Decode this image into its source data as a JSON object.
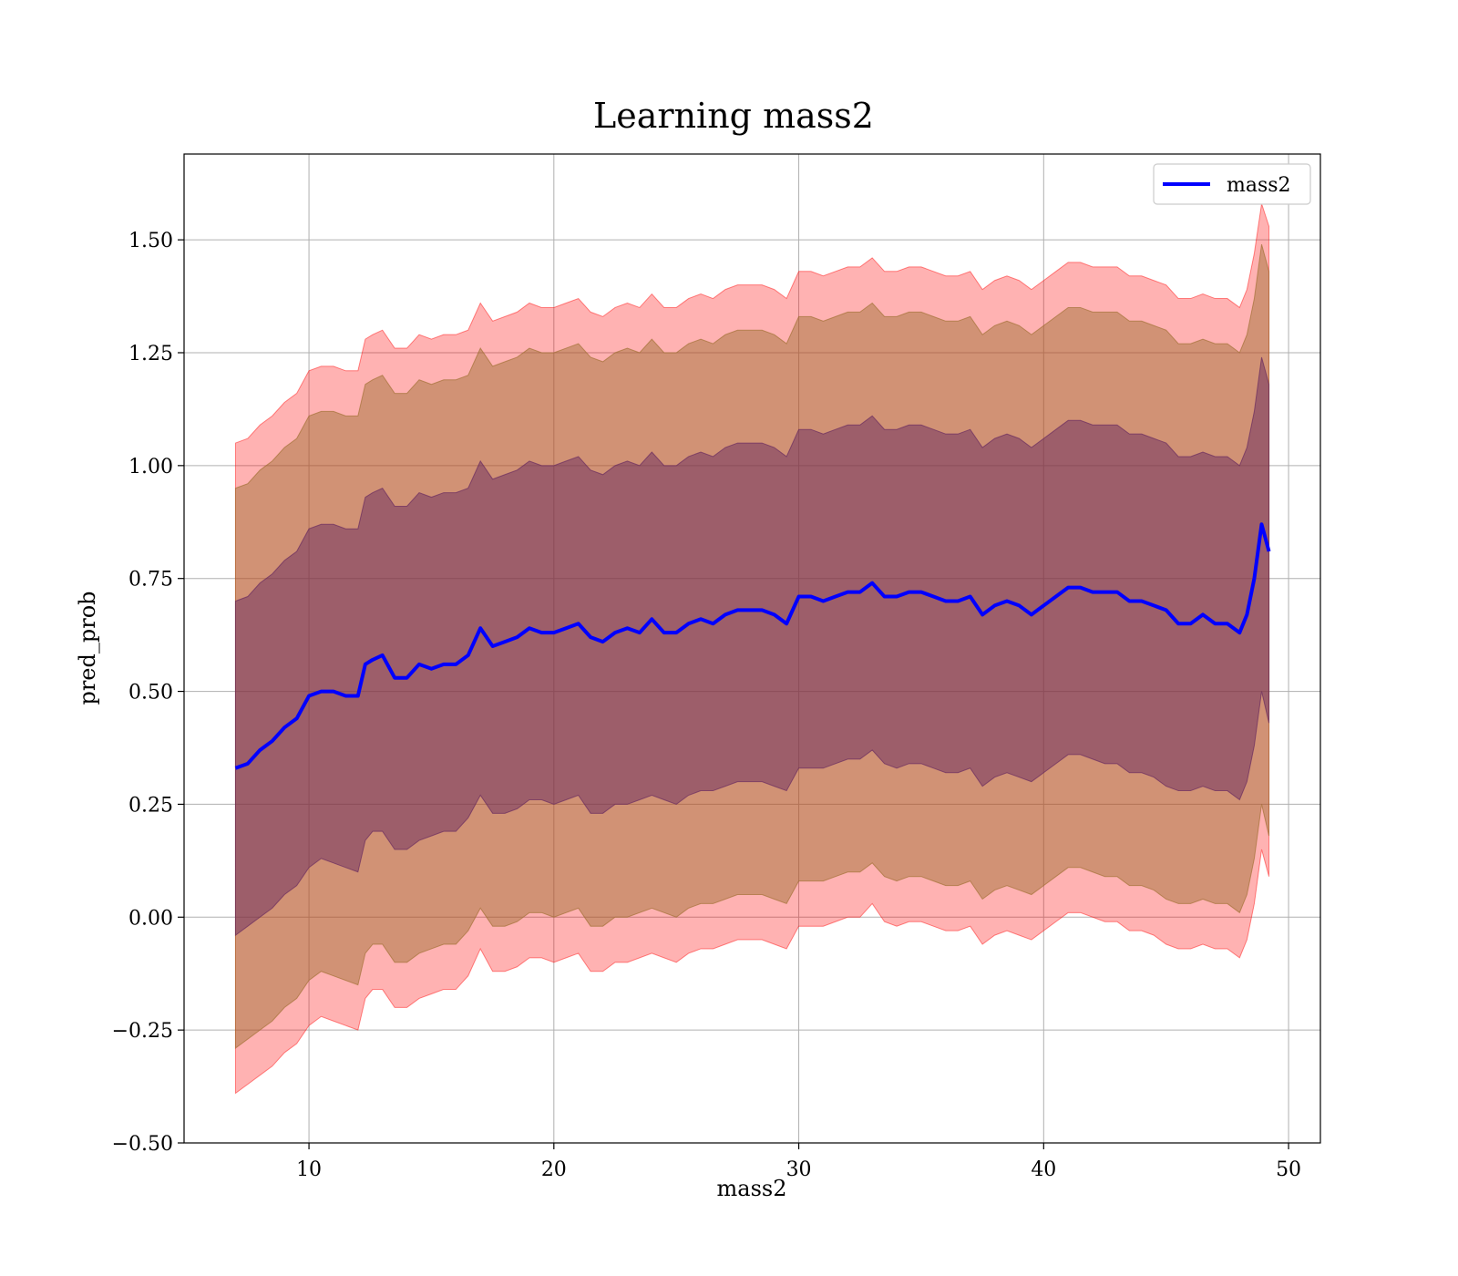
{
  "chart_data": {
    "type": "line",
    "title": "Learning mass2",
    "xlabel": "mass2",
    "ylabel": "pred_prob",
    "xlim": [
      4.9,
      51.3
    ],
    "ylim": [
      -0.5,
      1.69
    ],
    "x_ticks": [
      10,
      20,
      30,
      40,
      50
    ],
    "y_ticks": [
      -0.5,
      -0.25,
      0.0,
      0.25,
      0.5,
      0.75,
      1.0,
      1.25,
      1.5
    ],
    "x_tick_labels": [
      "10",
      "20",
      "30",
      "40",
      "50"
    ],
    "y_tick_labels": [
      "−0.50",
      "−0.25",
      "0.00",
      "0.25",
      "0.50",
      "0.75",
      "1.00",
      "1.25",
      "1.50"
    ],
    "grid": true,
    "legend_position": "top-right",
    "series": [
      {
        "name": "mass2",
        "color": "#0000ff",
        "x": [
          7.0,
          7.5,
          8.0,
          8.5,
          9.0,
          9.5,
          10.0,
          10.5,
          11.0,
          11.5,
          12.0,
          12.3,
          12.6,
          13.0,
          13.5,
          14.0,
          14.5,
          15.0,
          15.5,
          16.0,
          16.5,
          17.0,
          17.5,
          18.0,
          18.5,
          19.0,
          19.5,
          20.0,
          20.5,
          21.0,
          21.5,
          22.0,
          22.5,
          23.0,
          23.5,
          24.0,
          24.5,
          25.0,
          25.5,
          26.0,
          26.5,
          27.0,
          27.5,
          28.0,
          28.5,
          29.0,
          29.5,
          30.0,
          30.5,
          31.0,
          31.5,
          32.0,
          32.5,
          33.0,
          33.5,
          34.0,
          34.5,
          35.0,
          35.5,
          36.0,
          36.5,
          37.0,
          37.5,
          38.0,
          38.5,
          39.0,
          39.5,
          40.0,
          40.5,
          41.0,
          41.5,
          42.0,
          42.5,
          43.0,
          43.5,
          44.0,
          44.5,
          45.0,
          45.5,
          46.0,
          46.5,
          47.0,
          47.5,
          48.0,
          48.3,
          48.6,
          48.9,
          49.2
        ],
        "values": [
          0.33,
          0.34,
          0.37,
          0.39,
          0.42,
          0.44,
          0.49,
          0.5,
          0.5,
          0.49,
          0.49,
          0.56,
          0.57,
          0.58,
          0.53,
          0.53,
          0.56,
          0.55,
          0.56,
          0.56,
          0.58,
          0.64,
          0.6,
          0.61,
          0.62,
          0.64,
          0.63,
          0.63,
          0.64,
          0.65,
          0.62,
          0.61,
          0.63,
          0.64,
          0.63,
          0.66,
          0.63,
          0.63,
          0.65,
          0.66,
          0.65,
          0.67,
          0.68,
          0.68,
          0.68,
          0.67,
          0.65,
          0.71,
          0.71,
          0.7,
          0.71,
          0.72,
          0.72,
          0.74,
          0.71,
          0.71,
          0.72,
          0.72,
          0.71,
          0.7,
          0.7,
          0.71,
          0.67,
          0.69,
          0.7,
          0.69,
          0.67,
          0.69,
          0.71,
          0.73,
          0.73,
          0.72,
          0.72,
          0.72,
          0.7,
          0.7,
          0.69,
          0.68,
          0.65,
          0.65,
          0.67,
          0.65,
          0.65,
          0.63,
          0.67,
          0.75,
          0.87,
          0.81
        ]
      }
    ],
    "bands": [
      {
        "color": "#ff0000",
        "opacity": 0.3,
        "lower": [
          -0.39,
          -0.37,
          -0.35,
          -0.33,
          -0.3,
          -0.28,
          -0.24,
          -0.22,
          -0.23,
          -0.24,
          -0.25,
          -0.18,
          -0.16,
          -0.16,
          -0.2,
          -0.2,
          -0.18,
          -0.17,
          -0.16,
          -0.16,
          -0.13,
          -0.07,
          -0.12,
          -0.12,
          -0.11,
          -0.09,
          -0.09,
          -0.1,
          -0.09,
          -0.08,
          -0.12,
          -0.12,
          -0.1,
          -0.1,
          -0.09,
          -0.08,
          -0.09,
          -0.1,
          -0.08,
          -0.07,
          -0.07,
          -0.06,
          -0.05,
          -0.05,
          -0.05,
          -0.06,
          -0.07,
          -0.02,
          -0.02,
          -0.02,
          -0.01,
          0.0,
          0.0,
          0.03,
          -0.01,
          -0.02,
          -0.01,
          -0.01,
          -0.02,
          -0.03,
          -0.03,
          -0.02,
          -0.06,
          -0.04,
          -0.03,
          -0.04,
          -0.05,
          -0.03,
          -0.01,
          0.01,
          0.01,
          0.0,
          -0.01,
          -0.01,
          -0.03,
          -0.03,
          -0.04,
          -0.06,
          -0.07,
          -0.07,
          -0.06,
          -0.07,
          -0.07,
          -0.09,
          -0.05,
          0.03,
          0.15,
          0.09
        ],
        "upper": [
          1.05,
          1.06,
          1.09,
          1.11,
          1.14,
          1.16,
          1.21,
          1.22,
          1.22,
          1.21,
          1.21,
          1.28,
          1.29,
          1.3,
          1.26,
          1.26,
          1.29,
          1.28,
          1.29,
          1.29,
          1.3,
          1.36,
          1.32,
          1.33,
          1.34,
          1.36,
          1.35,
          1.35,
          1.36,
          1.37,
          1.34,
          1.33,
          1.35,
          1.36,
          1.35,
          1.38,
          1.35,
          1.35,
          1.37,
          1.38,
          1.37,
          1.39,
          1.4,
          1.4,
          1.4,
          1.39,
          1.37,
          1.43,
          1.43,
          1.42,
          1.43,
          1.44,
          1.44,
          1.46,
          1.43,
          1.43,
          1.44,
          1.44,
          1.43,
          1.42,
          1.42,
          1.43,
          1.39,
          1.41,
          1.42,
          1.41,
          1.39,
          1.41,
          1.43,
          1.45,
          1.45,
          1.44,
          1.44,
          1.44,
          1.42,
          1.42,
          1.41,
          1.4,
          1.37,
          1.37,
          1.38,
          1.37,
          1.37,
          1.35,
          1.39,
          1.47,
          1.58,
          1.53
        ]
      },
      {
        "color": "#9a6a2a",
        "opacity": 0.45,
        "lower": [
          -0.29,
          -0.27,
          -0.25,
          -0.23,
          -0.2,
          -0.18,
          -0.14,
          -0.12,
          -0.13,
          -0.14,
          -0.15,
          -0.08,
          -0.06,
          -0.06,
          -0.1,
          -0.1,
          -0.08,
          -0.07,
          -0.06,
          -0.06,
          -0.03,
          0.02,
          -0.02,
          -0.02,
          -0.01,
          0.01,
          0.01,
          0.0,
          0.01,
          0.02,
          -0.02,
          -0.02,
          0.0,
          0.0,
          0.01,
          0.02,
          0.01,
          0.0,
          0.02,
          0.03,
          0.03,
          0.04,
          0.05,
          0.05,
          0.05,
          0.04,
          0.03,
          0.08,
          0.08,
          0.08,
          0.09,
          0.1,
          0.1,
          0.12,
          0.09,
          0.08,
          0.09,
          0.09,
          0.08,
          0.07,
          0.07,
          0.08,
          0.04,
          0.06,
          0.07,
          0.06,
          0.05,
          0.07,
          0.09,
          0.11,
          0.11,
          0.1,
          0.09,
          0.09,
          0.07,
          0.07,
          0.06,
          0.04,
          0.03,
          0.03,
          0.04,
          0.03,
          0.03,
          0.01,
          0.05,
          0.13,
          0.25,
          0.18
        ],
        "upper": [
          0.95,
          0.96,
          0.99,
          1.01,
          1.04,
          1.06,
          1.11,
          1.12,
          1.12,
          1.11,
          1.11,
          1.18,
          1.19,
          1.2,
          1.16,
          1.16,
          1.19,
          1.18,
          1.19,
          1.19,
          1.2,
          1.26,
          1.22,
          1.23,
          1.24,
          1.26,
          1.25,
          1.25,
          1.26,
          1.27,
          1.24,
          1.23,
          1.25,
          1.26,
          1.25,
          1.28,
          1.25,
          1.25,
          1.27,
          1.28,
          1.27,
          1.29,
          1.3,
          1.3,
          1.3,
          1.29,
          1.27,
          1.33,
          1.33,
          1.32,
          1.33,
          1.34,
          1.34,
          1.36,
          1.33,
          1.33,
          1.34,
          1.34,
          1.33,
          1.32,
          1.32,
          1.33,
          1.29,
          1.31,
          1.32,
          1.31,
          1.29,
          1.31,
          1.33,
          1.35,
          1.35,
          1.34,
          1.34,
          1.34,
          1.32,
          1.32,
          1.31,
          1.3,
          1.27,
          1.27,
          1.28,
          1.27,
          1.27,
          1.25,
          1.29,
          1.37,
          1.49,
          1.43
        ]
      },
      {
        "color": "#5e1f5e",
        "opacity": 0.45,
        "lower": [
          -0.04,
          -0.02,
          0.0,
          0.02,
          0.05,
          0.07,
          0.11,
          0.13,
          0.12,
          0.11,
          0.1,
          0.17,
          0.19,
          0.19,
          0.15,
          0.15,
          0.17,
          0.18,
          0.19,
          0.19,
          0.22,
          0.27,
          0.23,
          0.23,
          0.24,
          0.26,
          0.26,
          0.25,
          0.26,
          0.27,
          0.23,
          0.23,
          0.25,
          0.25,
          0.26,
          0.27,
          0.26,
          0.25,
          0.27,
          0.28,
          0.28,
          0.29,
          0.3,
          0.3,
          0.3,
          0.29,
          0.28,
          0.33,
          0.33,
          0.33,
          0.34,
          0.35,
          0.35,
          0.37,
          0.34,
          0.33,
          0.34,
          0.34,
          0.33,
          0.32,
          0.32,
          0.33,
          0.29,
          0.31,
          0.32,
          0.31,
          0.3,
          0.32,
          0.34,
          0.36,
          0.36,
          0.35,
          0.34,
          0.34,
          0.32,
          0.32,
          0.31,
          0.29,
          0.28,
          0.28,
          0.29,
          0.28,
          0.28,
          0.26,
          0.3,
          0.38,
          0.5,
          0.43
        ],
        "upper": [
          0.7,
          0.71,
          0.74,
          0.76,
          0.79,
          0.81,
          0.86,
          0.87,
          0.87,
          0.86,
          0.86,
          0.93,
          0.94,
          0.95,
          0.91,
          0.91,
          0.94,
          0.93,
          0.94,
          0.94,
          0.95,
          1.01,
          0.97,
          0.98,
          0.99,
          1.01,
          1.0,
          1.0,
          1.01,
          1.02,
          0.99,
          0.98,
          1.0,
          1.01,
          1.0,
          1.03,
          1.0,
          1.0,
          1.02,
          1.03,
          1.02,
          1.04,
          1.05,
          1.05,
          1.05,
          1.04,
          1.02,
          1.08,
          1.08,
          1.07,
          1.08,
          1.09,
          1.09,
          1.11,
          1.08,
          1.08,
          1.09,
          1.09,
          1.08,
          1.07,
          1.07,
          1.08,
          1.04,
          1.06,
          1.07,
          1.06,
          1.04,
          1.06,
          1.08,
          1.1,
          1.1,
          1.09,
          1.09,
          1.09,
          1.07,
          1.07,
          1.06,
          1.05,
          1.02,
          1.02,
          1.03,
          1.02,
          1.02,
          1.0,
          1.04,
          1.12,
          1.24,
          1.18
        ]
      }
    ]
  }
}
